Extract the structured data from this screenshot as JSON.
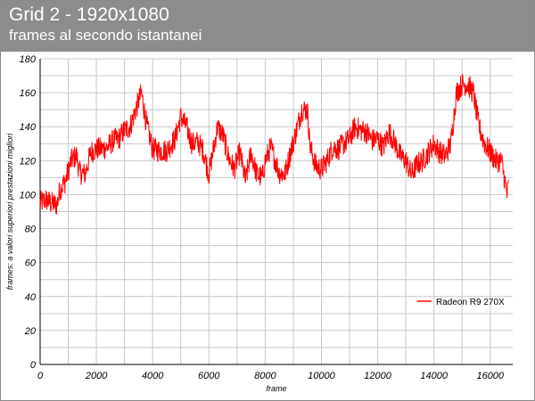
{
  "title": "Grid 2 - 1920x1080",
  "subtitle": "frames al secondo istantanei",
  "colors": {
    "header_bg": "#8c8c8c",
    "series": "#ff0000",
    "grid": "#c8c8c8"
  },
  "chart_data": {
    "type": "line",
    "title": "Grid 2 - 1920x1080",
    "subtitle": "frames al secondo istantanei",
    "xlabel": "frame",
    "ylabel": "frames: a valori superiori prestazioni migliori",
    "xlim": [
      0,
      16800
    ],
    "ylim": [
      0,
      180
    ],
    "x_ticks": [
      0,
      2000,
      4000,
      6000,
      8000,
      10000,
      12000,
      14000,
      16000
    ],
    "x_tick_labels": [
      "0",
      "2000",
      "4000",
      "6000",
      "8000",
      "10000",
      "12000",
      "14000",
      "16000"
    ],
    "y_ticks": [
      0,
      20,
      40,
      60,
      80,
      100,
      120,
      140,
      160,
      180
    ],
    "y_tick_labels": [
      "0",
      "20",
      "40",
      "60",
      "80",
      "100",
      "120",
      "140",
      "160",
      "180"
    ],
    "grid": true,
    "legend_position": "right",
    "series": [
      {
        "name": "Radeon R9 270X",
        "color": "#ff0000",
        "x": [
          0,
          200,
          400,
          600,
          700,
          900,
          1100,
          1300,
          1400,
          1600,
          1800,
          2000,
          2200,
          2400,
          2600,
          2800,
          3000,
          3200,
          3400,
          3600,
          3800,
          4000,
          4200,
          4500,
          4800,
          5000,
          5200,
          5400,
          5600,
          5800,
          6000,
          6200,
          6300,
          6500,
          6700,
          6900,
          7100,
          7300,
          7500,
          7700,
          7900,
          8000,
          8200,
          8400,
          8500,
          8700,
          8900,
          9100,
          9300,
          9500,
          9600,
          9800,
          10000,
          10200,
          10400,
          10600,
          10800,
          11000,
          11200,
          11400,
          11600,
          11800,
          12000,
          12200,
          12400,
          12600,
          12800,
          13000,
          13200,
          13400,
          13600,
          13800,
          14000,
          14200,
          14400,
          14600,
          14800,
          15000,
          15200,
          15400,
          15600,
          15800,
          16000,
          16200,
          16400,
          16500,
          16600,
          16650
        ],
        "y": [
          95,
          97,
          95,
          94,
          103,
          108,
          120,
          123,
          113,
          112,
          125,
          127,
          127,
          128,
          132,
          133,
          138,
          140,
          150,
          160,
          140,
          127,
          126,
          126,
          133,
          146,
          140,
          130,
          131,
          126,
          112,
          130,
          140,
          135,
          122,
          115,
          125,
          108,
          125,
          112,
          110,
          120,
          128,
          118,
          113,
          112,
          125,
          137,
          150,
          150,
          128,
          117,
          115,
          120,
          128,
          127,
          130,
          133,
          140,
          138,
          137,
          132,
          133,
          128,
          137,
          131,
          123,
          120,
          112,
          118,
          120,
          125,
          130,
          125,
          123,
          130,
          160,
          165,
          165,
          160,
          140,
          130,
          125,
          120,
          120,
          110,
          100,
          105
        ]
      }
    ]
  }
}
